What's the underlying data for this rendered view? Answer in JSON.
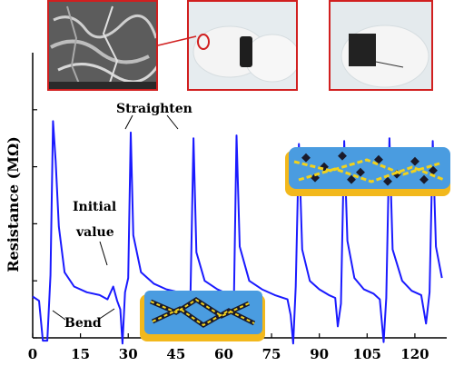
{
  "chart_data": {
    "type": "line",
    "title": "",
    "xlabel": "",
    "ylabel": "Resistance (MΩ)",
    "xlim": [
      0,
      130
    ],
    "ylim": [
      0,
      10
    ],
    "x_ticks": [
      "0",
      "15",
      "30",
      "45",
      "60",
      "75",
      "90",
      "105",
      "120"
    ],
    "x_tick_values": [
      0,
      15,
      30,
      45,
      60,
      75,
      90,
      105,
      120
    ],
    "grid": false,
    "series": [
      {
        "color": "#1a1aff",
        "points": [
          [
            0,
            1.45
          ],
          [
            2,
            1.3
          ],
          [
            3.2,
            -0.1
          ],
          [
            4.6,
            -0.1
          ],
          [
            5.6,
            2.2
          ],
          [
            6.4,
            7.6
          ],
          [
            7.2,
            6.2
          ],
          [
            8.2,
            3.9
          ],
          [
            10,
            2.3
          ],
          [
            13,
            1.8
          ],
          [
            17,
            1.6
          ],
          [
            21,
            1.5
          ],
          [
            23.5,
            1.35
          ],
          [
            25.3,
            1.8
          ],
          [
            26.5,
            1.3
          ],
          [
            27.5,
            1.0
          ],
          [
            28.2,
            -0.2
          ],
          [
            29,
            1.6
          ],
          [
            30,
            2.1
          ],
          [
            30.8,
            7.2
          ],
          [
            31.6,
            3.6
          ],
          [
            34,
            2.3
          ],
          [
            38,
            1.9
          ],
          [
            42,
            1.7
          ],
          [
            46,
            1.6
          ],
          [
            48,
            1.5
          ],
          [
            48.6,
            0.2
          ],
          [
            49.5,
            1.2
          ],
          [
            50.5,
            7.0
          ],
          [
            51.4,
            3.0
          ],
          [
            54,
            2.0
          ],
          [
            58,
            1.7
          ],
          [
            61,
            1.55
          ],
          [
            62.2,
            0.5
          ],
          [
            63.2,
            1.5
          ],
          [
            64,
            7.1
          ],
          [
            65,
            3.2
          ],
          [
            68,
            2.0
          ],
          [
            72,
            1.7
          ],
          [
            76,
            1.5
          ],
          [
            80,
            1.35
          ],
          [
            81,
            0.8
          ],
          [
            81.8,
            -0.2
          ],
          [
            82.6,
            1.8
          ],
          [
            83.6,
            6.8
          ],
          [
            84.6,
            3.1
          ],
          [
            87,
            2.0
          ],
          [
            90,
            1.7
          ],
          [
            93,
            1.5
          ],
          [
            95,
            1.4
          ],
          [
            95.8,
            0.4
          ],
          [
            96.8,
            1.2
          ],
          [
            97.8,
            6.9
          ],
          [
            98.8,
            3.4
          ],
          [
            101,
            2.1
          ],
          [
            104,
            1.7
          ],
          [
            107,
            1.55
          ],
          [
            109,
            1.35
          ],
          [
            110.2,
            -0.15
          ],
          [
            111,
            1.4
          ],
          [
            112,
            7.0
          ],
          [
            113,
            3.1
          ],
          [
            116,
            2.0
          ],
          [
            119,
            1.65
          ],
          [
            122,
            1.5
          ],
          [
            123.5,
            0.5
          ],
          [
            124.6,
            1.6
          ],
          [
            125.6,
            6.9
          ],
          [
            126.6,
            3.2
          ],
          [
            128.5,
            2.1
          ]
        ]
      }
    ],
    "annotations": [
      "Straighten",
      "Initial value",
      "Bend"
    ]
  }
}
